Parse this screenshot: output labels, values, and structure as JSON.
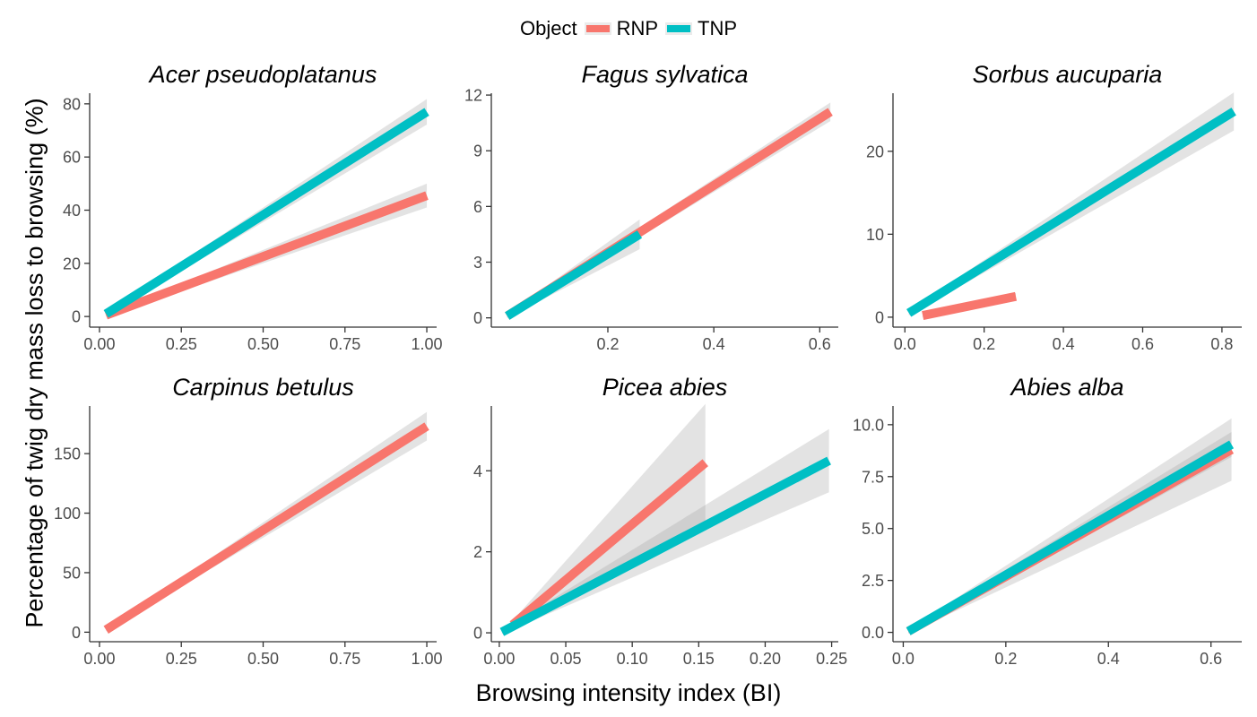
{
  "legend": {
    "title": "Object",
    "items": [
      {
        "label": "RNP",
        "color": "#F8766D"
      },
      {
        "label": "TNP",
        "color": "#00BFC4"
      }
    ]
  },
  "figure": {
    "ylabel": "Percentage of twig dry mass loss to browsing (%)",
    "xlabel": "Browsing intensity index (BI)"
  },
  "colors": {
    "RNP": "#F8766D",
    "TNP": "#00BFC4",
    "ribbon": "#999999",
    "axis": "#333333",
    "tick_label": "#4d4d4d"
  },
  "chart_data": [
    {
      "type": "line",
      "title": "Acer pseudoplatanus",
      "xlim": [
        -0.03,
        1.03
      ],
      "ylim": [
        -4,
        84
      ],
      "x_ticks": [
        0,
        0.25,
        0.5,
        0.75,
        1
      ],
      "x_tick_labels": [
        "0.00",
        "0.25",
        "0.50",
        "0.75",
        "1.00"
      ],
      "y_ticks": [
        0,
        20,
        40,
        60,
        80
      ],
      "y_tick_labels": [
        "0",
        "20",
        "40",
        "60",
        "80"
      ],
      "series": [
        {
          "name": "RNP",
          "x": [
            0.02,
            1.0
          ],
          "y": [
            0.5,
            45.5
          ],
          "ci_start": 0.6,
          "ci_end": 4.5
        },
        {
          "name": "TNP",
          "x": [
            0.02,
            1.0
          ],
          "y": [
            1.0,
            77.0
          ],
          "ci_start": 0.8,
          "ci_end": 4.8
        }
      ]
    },
    {
      "type": "line",
      "title": "Fagus sylvatica",
      "xlim": [
        -0.02,
        0.635
      ],
      "ylim": [
        -0.5,
        12.1
      ],
      "x_ticks": [
        0.2,
        0.4,
        0.6
      ],
      "x_tick_labels": [
        "0.2",
        "0.4",
        "0.6"
      ],
      "y_ticks": [
        0,
        3,
        6,
        9,
        12
      ],
      "y_tick_labels": [
        "0",
        "3",
        "6",
        "9",
        "12"
      ],
      "series": [
        {
          "name": "RNP",
          "x": [
            0.01,
            0.62
          ],
          "y": [
            0.1,
            11.1
          ],
          "ci_start": 0.1,
          "ci_end": 0.5
        },
        {
          "name": "TNP",
          "x": [
            0.01,
            0.26
          ],
          "y": [
            0.1,
            4.5
          ],
          "ci_start": 0.1,
          "ci_end": 0.8
        }
      ]
    },
    {
      "type": "line",
      "title": "Sorbus aucuparia",
      "xlim": [
        -0.03,
        0.85
      ],
      "ylim": [
        -1.2,
        27
      ],
      "x_ticks": [
        0,
        0.2,
        0.4,
        0.6,
        0.8
      ],
      "x_tick_labels": [
        "0.0",
        "0.2",
        "0.4",
        "0.6",
        "0.8"
      ],
      "y_ticks": [
        0,
        10,
        20
      ],
      "y_tick_labels": [
        "0",
        "10",
        "20"
      ],
      "series": [
        {
          "name": "RNP",
          "x": [
            0.045,
            0.28
          ],
          "y": [
            0.2,
            2.5
          ],
          "ci_start": 0.2,
          "ci_end": 0.4
        },
        {
          "name": "TNP",
          "x": [
            0.01,
            0.83
          ],
          "y": [
            0.5,
            24.8
          ],
          "ci_start": 0.3,
          "ci_end": 2.3
        }
      ]
    },
    {
      "type": "line",
      "title": "Carpinus betulus",
      "xlim": [
        -0.03,
        1.03
      ],
      "ylim": [
        -8,
        190
      ],
      "x_ticks": [
        0,
        0.25,
        0.5,
        0.75,
        1
      ],
      "x_tick_labels": [
        "0.00",
        "0.25",
        "0.50",
        "0.75",
        "1.00"
      ],
      "y_ticks": [
        0,
        50,
        100,
        150
      ],
      "y_tick_labels": [
        "0",
        "50",
        "100",
        "150"
      ],
      "series": [
        {
          "name": "RNP",
          "x": [
            0.02,
            1.0
          ],
          "y": [
            2.0,
            173.0
          ],
          "ci_start": 1,
          "ci_end": 12
        }
      ]
    },
    {
      "type": "line",
      "title": "Picea abies",
      "xlim": [
        -0.006,
        0.255
      ],
      "ylim": [
        -0.22,
        5.6
      ],
      "x_ticks": [
        0,
        0.05,
        0.1,
        0.15,
        0.2,
        0.25
      ],
      "x_tick_labels": [
        "0.00",
        "0.05",
        "0.10",
        "0.15",
        "0.20",
        "0.25"
      ],
      "y_ticks": [
        0,
        2,
        4
      ],
      "y_tick_labels": [
        "0",
        "2",
        "4"
      ],
      "series": [
        {
          "name": "RNP",
          "x": [
            0.01,
            0.155
          ],
          "y": [
            0.2,
            4.2
          ],
          "ci_start": 0.1,
          "ci_end": 1.45
        },
        {
          "name": "TNP",
          "x": [
            0.002,
            0.248
          ],
          "y": [
            0.02,
            4.25
          ],
          "ci_start": 0.05,
          "ci_end": 0.78
        }
      ]
    },
    {
      "type": "line",
      "title": "Abies alba",
      "xlim": [
        -0.02,
        0.66
      ],
      "ylim": [
        -0.45,
        10.9
      ],
      "x_ticks": [
        0,
        0.2,
        0.4,
        0.6
      ],
      "x_tick_labels": [
        "0.0",
        "0.2",
        "0.4",
        "0.6"
      ],
      "y_ticks": [
        0,
        2.5,
        5,
        7.5,
        10
      ],
      "y_tick_labels": [
        "0.0",
        "2.5",
        "5.0",
        "7.5",
        "10.0"
      ],
      "series": [
        {
          "name": "RNP",
          "x": [
            0.01,
            0.64
          ],
          "y": [
            0.05,
            8.8
          ],
          "ci_start": 0.1,
          "ci_end": 1.5
        },
        {
          "name": "TNP",
          "x": [
            0.01,
            0.64
          ],
          "y": [
            0.05,
            9.05
          ],
          "ci_start": 0.1,
          "ci_end": 0.6
        }
      ]
    }
  ]
}
